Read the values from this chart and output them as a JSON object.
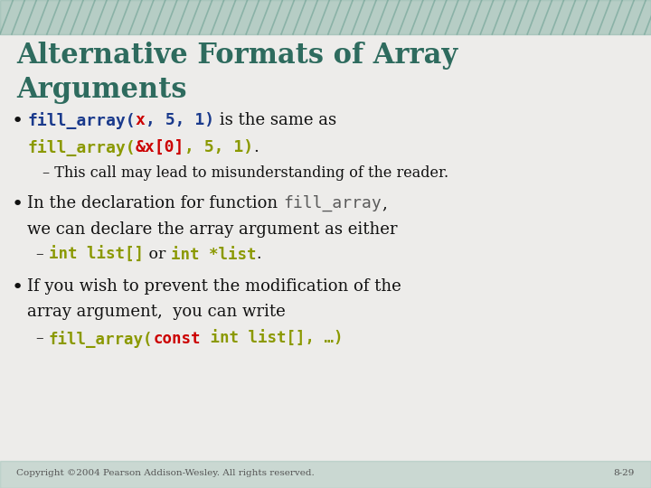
{
  "title_line1": "Alternative Formats of Array",
  "title_line2": "Arguments",
  "title_color": "#2E6B5E",
  "bg_color": "#EDECEA",
  "header_color": "#8AB5A8",
  "bullet1_code1_parts": [
    {
      "text": "fill_array(",
      "color": "#1A3A8C",
      "mono": true,
      "bold": true
    },
    {
      "text": "x",
      "color": "#CC0000",
      "mono": true,
      "bold": true
    },
    {
      "text": ", 5, 1)",
      "color": "#1A3A8C",
      "mono": true,
      "bold": true
    }
  ],
  "bullet1_text1": " is the same as",
  "bullet1_line2_parts": [
    {
      "text": "fill_array(",
      "color": "#8B9900",
      "mono": true,
      "bold": true
    },
    {
      "text": "&x[0]",
      "color": "#CC0000",
      "mono": true,
      "bold": true
    },
    {
      "text": ", 5, 1)",
      "color": "#8B9900",
      "mono": true,
      "bold": true
    },
    {
      "text": ".",
      "color": "#111111",
      "mono": false,
      "bold": false
    }
  ],
  "bullet1_sub": "– This call may lead to misunderstanding of the reader.",
  "bullet2_text1": "In the declaration for function ",
  "bullet2_code": "fill_array",
  "bullet2_text2": ",",
  "bullet2_text3": "we can declare the array argument as either",
  "bullet2_sub_parts": [
    {
      "text": "– ",
      "color": "#111111",
      "mono": false,
      "bold": false
    },
    {
      "text": "int list[]",
      "color": "#8B9900",
      "mono": true,
      "bold": true
    },
    {
      "text": " or ",
      "color": "#111111",
      "mono": false,
      "bold": false
    },
    {
      "text": "int *list",
      "color": "#8B9900",
      "mono": true,
      "bold": true
    },
    {
      "text": ".",
      "color": "#111111",
      "mono": false,
      "bold": false
    }
  ],
  "bullet3_text1": "If you wish to prevent the modification of the",
  "bullet3_text2": "array argument,  you can write",
  "bullet3_sub_parts": [
    {
      "text": "– ",
      "color": "#111111",
      "mono": false,
      "bold": false
    },
    {
      "text": "fill_array(",
      "color": "#8B9900",
      "mono": true,
      "bold": true
    },
    {
      "text": "const",
      "color": "#CC0000",
      "mono": true,
      "bold": true
    },
    {
      "text": " int list[], …)",
      "color": "#8B9900",
      "mono": true,
      "bold": true
    }
  ],
  "footer_left": "Copyright ©2004 Pearson Addison-Wesley. All rights reserved.",
  "footer_right": "8-29",
  "code_color_blue": "#1A3A8C",
  "code_color_green": "#8B9900",
  "code_color_red": "#CC0000",
  "code_color_gray": "#5A5A5A",
  "text_color": "#111111",
  "footer_color": "#555555"
}
